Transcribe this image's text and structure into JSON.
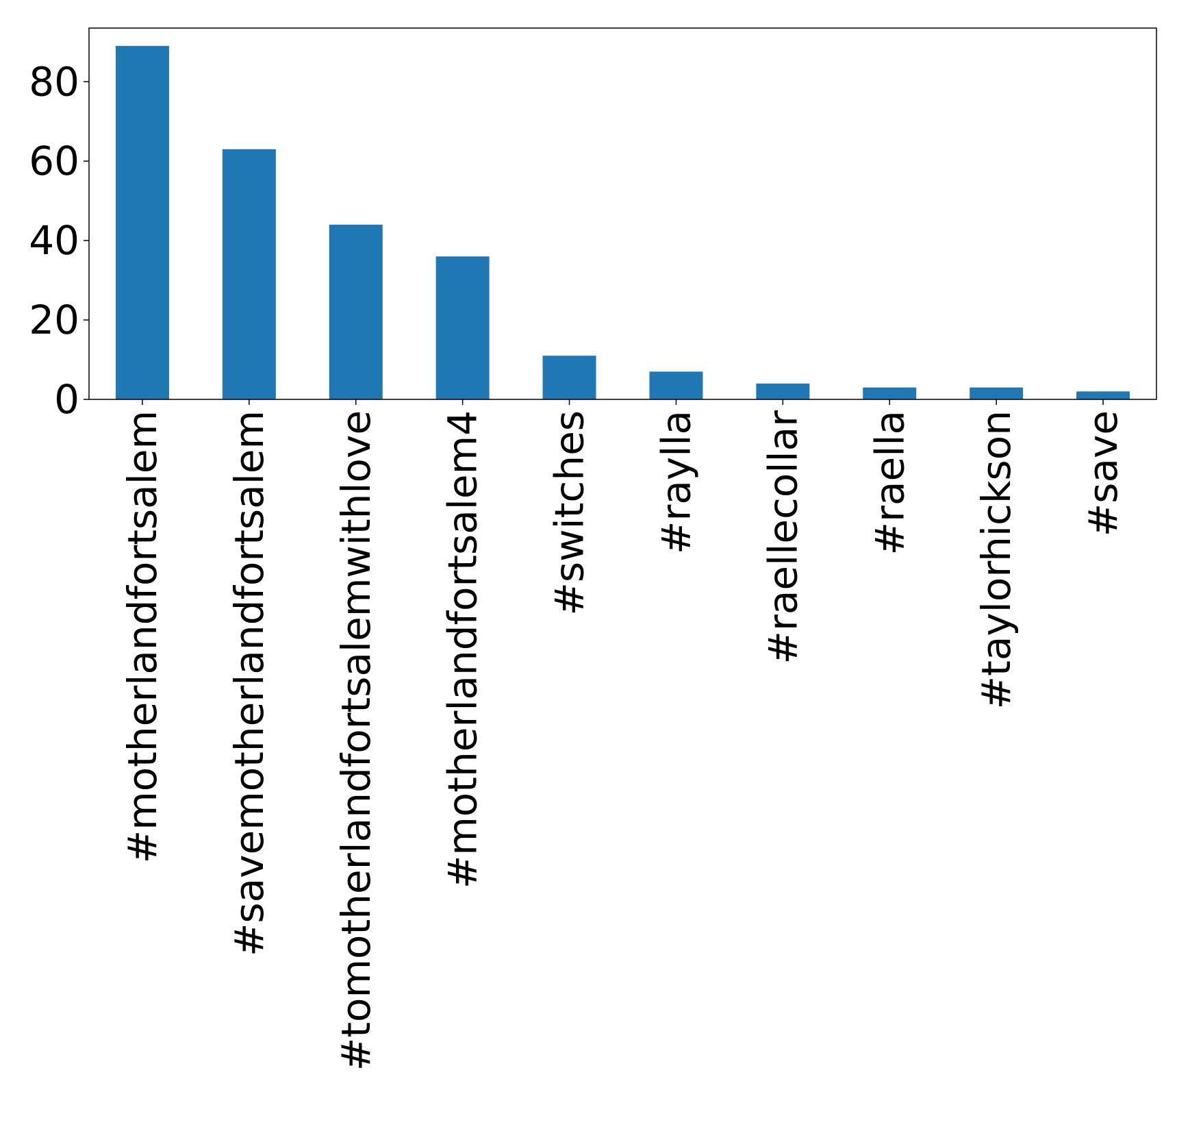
{
  "chart_data": {
    "type": "bar",
    "categories": [
      "#motherlandfortsalem",
      "#savemotherlandfortsalem",
      "#tomotherlandfortsalemwithlove",
      "#motherlandfortsalem4",
      "#switches",
      "#raylla",
      "#raellecollar",
      "#raella",
      "#taylorhickson",
      "#save"
    ],
    "values": [
      89,
      63,
      44,
      36,
      11,
      7,
      4,
      3,
      3,
      2
    ],
    "title": "",
    "xlabel": "",
    "ylabel": "",
    "ylim": [
      0,
      93.5
    ],
    "yticks": [
      0,
      20,
      40,
      60,
      80
    ],
    "bar_color": "#1f77b4",
    "grid": false,
    "legend": "none"
  }
}
